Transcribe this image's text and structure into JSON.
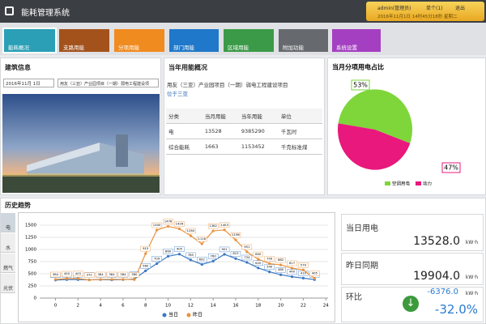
{
  "header": {
    "title": "能耗管理系统",
    "user": "admin(管理员)",
    "help": "单个(1)",
    "logout": "退出",
    "datetime": "2016年11月1日 14时45分18秒 星期二"
  },
  "nav": [
    "能耗概况",
    "支路用能",
    "分项用能",
    "部门用能",
    "区域用能",
    "附加功能",
    "系统设置"
  ],
  "building": {
    "title": "建筑信息",
    "date": "2016年11月 1日",
    "project": "用友（三亚）产业园项目（一期）弱电工程建设项"
  },
  "overview": {
    "title": "当年用能概况",
    "project": "用友（三亚）产业园项目（一期）弱电工程建设项目",
    "location": "位于三亚",
    "table": {
      "header": [
        "分类",
        "当月用能",
        "当年用能",
        "单位"
      ],
      "rows": [
        [
          "电",
          "13528",
          "9385290",
          "千瓦时"
        ],
        [
          "综合能耗",
          "1663",
          "1153452",
          "千克标准煤"
        ]
      ]
    }
  },
  "tabs": [
    "电",
    "水",
    "燃气",
    "光伏"
  ],
  "stats": [
    {
      "label": "当日用电",
      "value": "13528.0",
      "unit": "kW·h"
    },
    {
      "label": "昨日同期",
      "value": "19904.0",
      "unit": "kW·h"
    },
    {
      "label": "环比",
      "value": "-6376.0",
      "unit": "kW·h",
      "percent": "-32.0%"
    }
  ],
  "chart_data": [
    {
      "type": "pie",
      "title": "当月分项用电占比",
      "categories": [
        "空调用电",
        "动力"
      ],
      "values": [
        53,
        47
      ],
      "value_labels": [
        "53%",
        "47%"
      ],
      "colors": [
        "#7ed63a",
        "#e8187c"
      ]
    },
    {
      "type": "line",
      "title": "历史趋势",
      "x": [
        0,
        1,
        2,
        3,
        4,
        5,
        6,
        7,
        8,
        9,
        10,
        11,
        12,
        13,
        14,
        15,
        16,
        17,
        18,
        19,
        20,
        21,
        22,
        23
      ],
      "series": [
        {
          "name": "当日",
          "color": "#3a78c2",
          "values": [
            370,
            380,
            380,
            375,
            380,
            375,
            380,
            390,
            560,
            709,
            860,
            905,
            785,
            692,
            760,
            901,
            813,
            734,
            620,
            540,
            480,
            440,
            410,
            380
          ]
        },
        {
          "name": "昨日",
          "color": "#e8923e",
          "values": [
            384,
            400,
            403,
            372,
            384,
            384,
            384,
            380,
            915,
            1400,
            1476,
            1426,
            1284,
            1116,
            1382,
            1403,
            1196,
            951,
            800,
            709,
            682,
            617,
            579,
            405
          ]
        }
      ],
      "xlim": [
        -1.4,
        24.2
      ],
      "xticks": [
        0,
        2,
        4,
        6,
        8,
        10,
        12,
        14,
        16,
        18,
        20,
        22,
        24
      ],
      "ylim": [
        0,
        1600
      ],
      "yticks": [
        0,
        250,
        500,
        750,
        1000,
        1250,
        1500
      ],
      "grid": true
    }
  ]
}
